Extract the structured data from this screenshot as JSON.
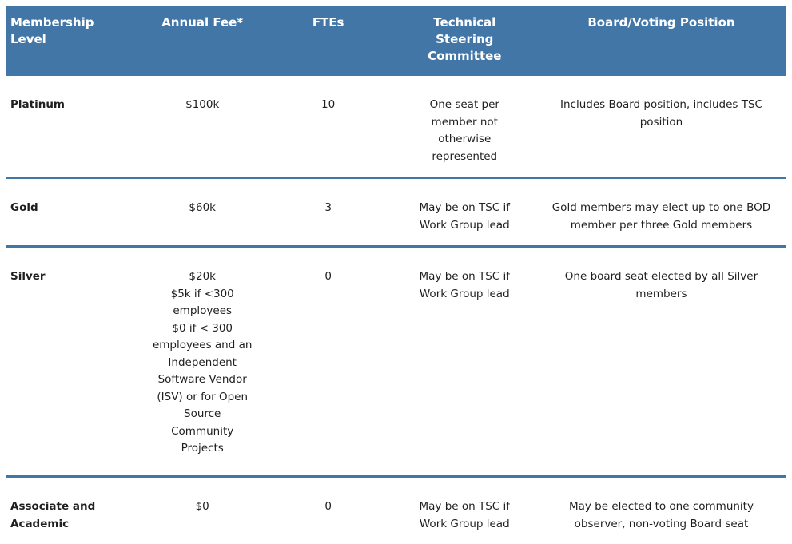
{
  "meta": {
    "accent_color": "#4276A7",
    "header_text_color": "#FFFFFF",
    "body_text_color": "#1F1F1F"
  },
  "table": {
    "columns": [
      {
        "id": "level",
        "label": [
          "Membership",
          "Level"
        ]
      },
      {
        "id": "fee",
        "label": [
          "Annual Fee*"
        ]
      },
      {
        "id": "ftes",
        "label": [
          "FTEs"
        ]
      },
      {
        "id": "tsc",
        "label": [
          "Technical",
          "Steering",
          "Committee"
        ]
      },
      {
        "id": "board",
        "label": [
          "Board/Voting Position"
        ]
      }
    ],
    "rows": [
      {
        "level": "Platinum",
        "fee": [
          "$100k"
        ],
        "ftes": "10",
        "tsc": [
          "One seat per",
          "member not",
          "otherwise",
          "represented"
        ],
        "board": [
          "Includes Board position, includes TSC",
          "position"
        ]
      },
      {
        "level": "Gold",
        "fee": [
          "$60k"
        ],
        "ftes": "3",
        "tsc": [
          "May be on TSC if",
          "Work Group lead"
        ],
        "board": [
          "Gold members may elect up to one BOD",
          "member per three Gold members"
        ]
      },
      {
        "level": "Silver",
        "fee": [
          "$20k",
          "$5k if <300",
          "employees",
          "$0 if < 300",
          "employees and an",
          "Independent",
          "Software Vendor",
          "(ISV) or for Open",
          "Source",
          "Community",
          "Projects"
        ],
        "ftes": "0",
        "tsc": [
          "May be on TSC if",
          "Work Group lead"
        ],
        "board": [
          "One board seat elected by all Silver",
          "members"
        ]
      },
      {
        "level": [
          "Associate and",
          "Academic"
        ],
        "fee": [
          "$0"
        ],
        "ftes": "0",
        "tsc": [
          "May be on TSC if",
          "Work Group lead"
        ],
        "board": [
          "May be elected to one community",
          "observer, non-voting Board seat"
        ]
      }
    ]
  }
}
